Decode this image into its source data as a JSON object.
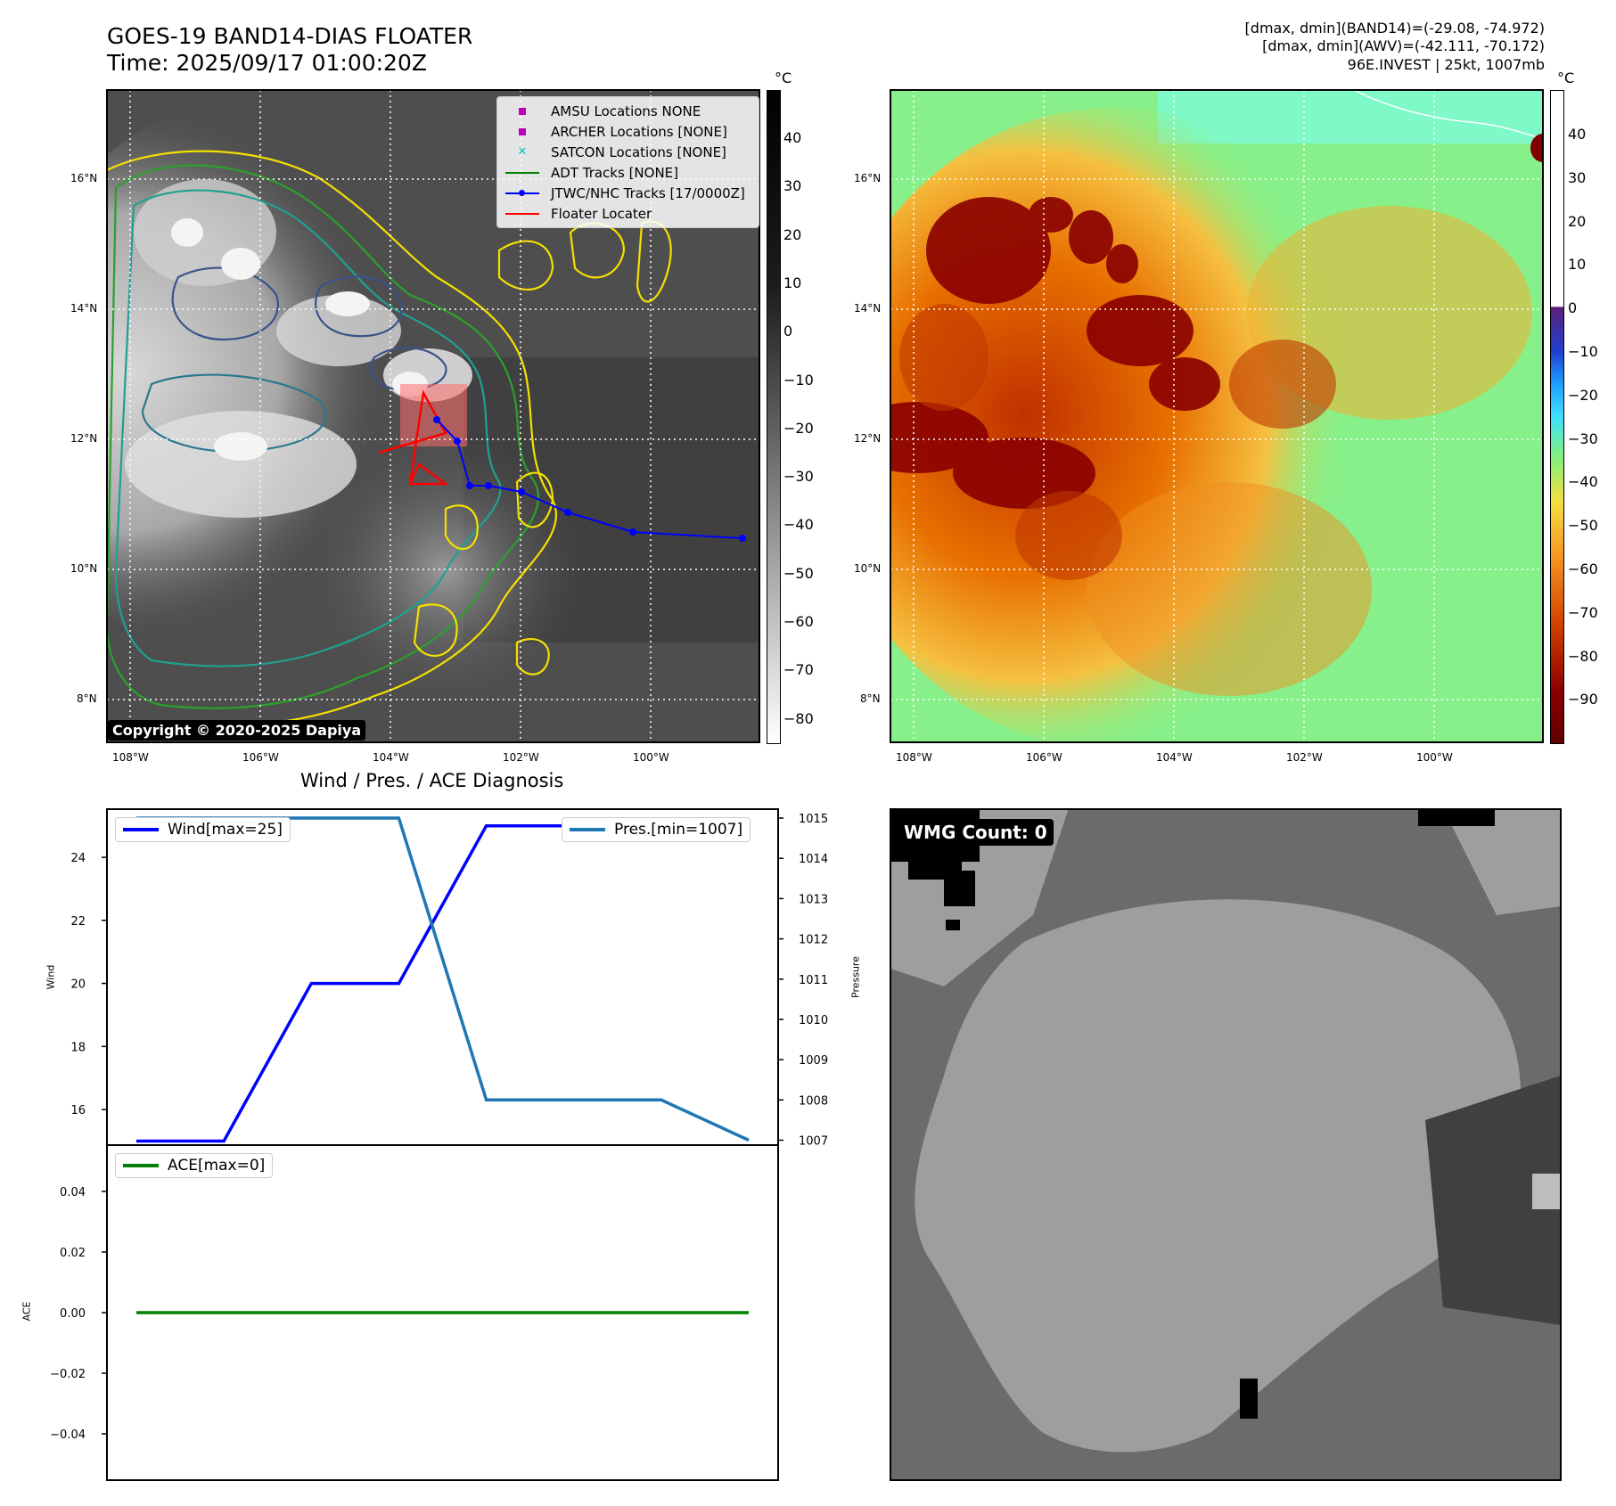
{
  "header": {
    "title": "GOES-19 BAND14-DIAS FLOATER",
    "time": "Time: 2025/09/17 01:00:20Z",
    "info_line1": "[dmax, dmin](BAND14)=(-29.08, -74.972)",
    "info_line2": "[dmax, dmin](AWV)=(-42.111, -70.172)",
    "info_line3": "96E.INVEST | 25kt, 1007mb"
  },
  "map_left": {
    "lat_labels": [
      "16°N",
      "14°N",
      "12°N",
      "10°N",
      "8°N"
    ],
    "lon_labels": [
      "108°W",
      "106°W",
      "104°W",
      "102°W",
      "100°W"
    ],
    "colorbar_unit": "°C",
    "colorbar_ticks": [
      "40",
      "30",
      "20",
      "10",
      "0",
      "−10",
      "−20",
      "−30",
      "−40",
      "−50",
      "−60",
      "−70",
      "−80"
    ],
    "copyright": "Copyright © 2020-2025 Dapiya",
    "legend": [
      {
        "label": "AMSU Locations NONE",
        "marker": "square",
        "color": "#bf00bf"
      },
      {
        "label": "ARCHER Locations [NONE]",
        "marker": "square",
        "color": "#bf00bf"
      },
      {
        "label": "SATCON Locations [NONE]",
        "marker": "x",
        "color": "#00bfbf"
      },
      {
        "label": "ADT Tracks [NONE]",
        "marker": "line",
        "color": "#008000"
      },
      {
        "label": "JTWC/NHC Tracks [17/0000Z]",
        "marker": "line-dot",
        "color": "#0000ff"
      },
      {
        "label": "Floater Locater",
        "marker": "line",
        "color": "#ff0000"
      }
    ]
  },
  "map_right": {
    "lat_labels": [
      "16°N",
      "14°N",
      "12°N",
      "10°N",
      "8°N"
    ],
    "lon_labels": [
      "108°W",
      "106°W",
      "104°W",
      "102°W",
      "100°W"
    ],
    "colorbar_unit": "°C",
    "colorbar_ticks": [
      "40",
      "30",
      "20",
      "10",
      "0",
      "−10",
      "−20",
      "−30",
      "−40",
      "−50",
      "−60",
      "−70",
      "−80",
      "−90"
    ]
  },
  "diag": {
    "title": "Wind / Pres. / ACE Diagnosis",
    "wind_legend": "Wind[max=25]",
    "pres_legend": "Pres.[min=1007]",
    "ace_legend": "ACE[max=0]",
    "wind_ylabel": "Wind",
    "pres_ylabel": "Pressure",
    "ace_ylabel": "ACE",
    "wind_color": "#0000ff",
    "pres_color": "#1f77b4",
    "ace_color": "#008000"
  },
  "wmg": {
    "label": "WMG Count: 0"
  },
  "chart_data": [
    {
      "type": "line",
      "title": "Wind / Pres. / ACE Diagnosis",
      "ylabel": "Wind",
      "ylim": [
        14.9,
        25.5
      ],
      "yticks": [
        16,
        18,
        20,
        22,
        24
      ],
      "x": [
        0,
        1,
        2,
        3,
        4,
        5,
        6,
        7
      ],
      "series": [
        {
          "name": "Wind[max=25]",
          "values": [
            15,
            15,
            20,
            20,
            25,
            25,
            25,
            25
          ]
        }
      ]
    },
    {
      "type": "line",
      "ylabel": "Pressure",
      "ylim": [
        1006.9,
        1015.2
      ],
      "yticks": [
        1007,
        1008,
        1009,
        1010,
        1011,
        1012,
        1013,
        1014,
        1015
      ],
      "x": [
        0,
        1,
        2,
        3,
        4,
        5,
        6,
        7
      ],
      "series": [
        {
          "name": "Pres.[min=1007]",
          "values": [
            1015,
            1015,
            1015,
            1015,
            1008,
            1008,
            1008,
            1007
          ]
        }
      ]
    },
    {
      "type": "line",
      "ylabel": "ACE",
      "ylim": [
        -0.055,
        0.055
      ],
      "yticks": [
        -0.04,
        -0.02,
        0.0,
        0.02,
        0.04
      ],
      "ytick_labels": [
        "−0.04",
        "−0.02",
        "0.00",
        "0.02",
        "0.04"
      ],
      "x": [
        0,
        1,
        2,
        3,
        4,
        5,
        6,
        7
      ],
      "series": [
        {
          "name": "ACE[max=0]",
          "values": [
            0,
            0,
            0,
            0,
            0,
            0,
            0,
            0
          ]
        }
      ]
    }
  ]
}
